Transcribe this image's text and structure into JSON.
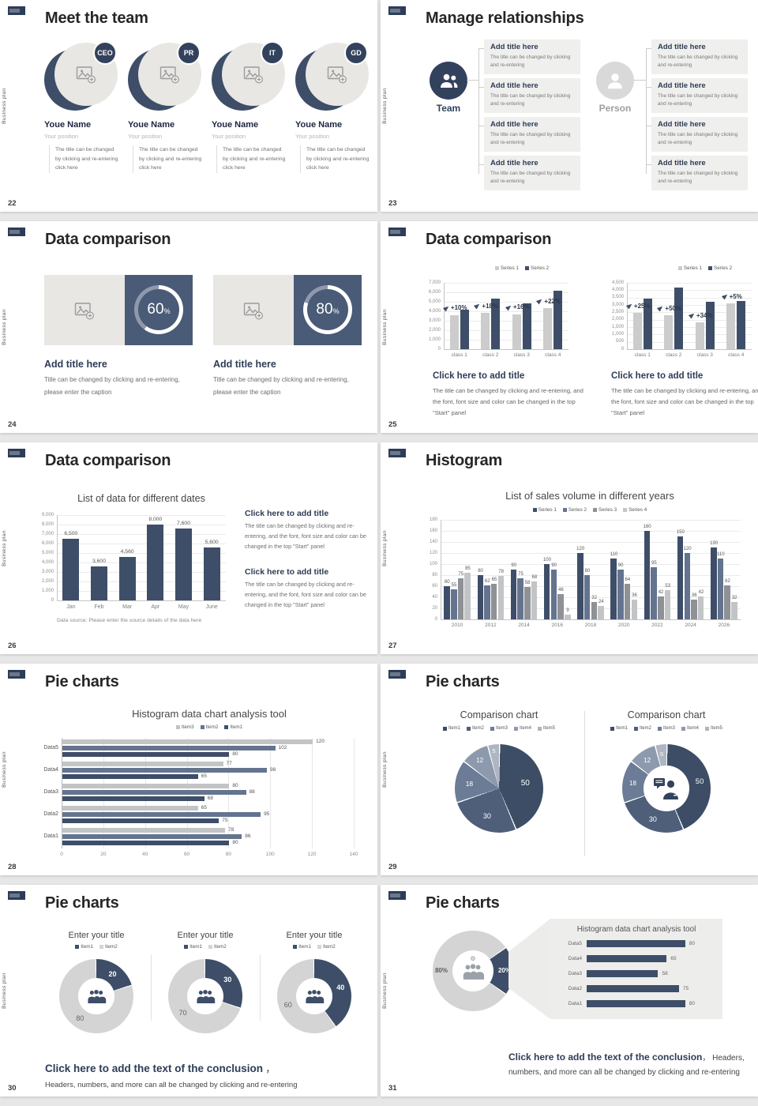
{
  "sidebar_text": "Business plan",
  "colors": {
    "navy": "#3e4e68",
    "heading": "#2e3c55",
    "badge": "#33425c",
    "blue_gray": "#64748f",
    "mid_gray": "#8e9196",
    "light_gray": "#c2c4c6",
    "bar_light": "#cccccc",
    "card_navy": "#4a5b77",
    "donut_gray": "#d4d4d4",
    "panel": "#ededeb",
    "placeholder": "#e9e7e4",
    "pie": [
      "#3d4d66",
      "#4f5f7a",
      "#6c7c96",
      "#8d9aae",
      "#aeb6c2"
    ]
  },
  "slides": [
    {
      "number": "22",
      "title": "Meet the team",
      "type": "team",
      "members": [
        {
          "role": "CEO"
        },
        {
          "role": "PR"
        },
        {
          "role": "IT"
        },
        {
          "role": "GD"
        }
      ],
      "name": "Youe Name",
      "position": "Your position",
      "caption": "The title can be changed by clicking and re-entering click here"
    },
    {
      "number": "23",
      "title": "Manage relationships",
      "type": "relations",
      "groups": [
        {
          "label": "Team",
          "icon": "team-icon"
        },
        {
          "label": "Person",
          "icon": "person-icon"
        }
      ],
      "box_title": "Add title here",
      "box_body": "The title can be changed by clicking and re-entering"
    },
    {
      "number": "24",
      "title": "Data comparison",
      "type": "percent_cards",
      "cards": [
        {
          "value": 60
        },
        {
          "value": 80
        }
      ],
      "percent_sign": "%",
      "card_title": "Add title here",
      "card_caption": "Title can be changed by clicking and re-entering, please enter the caption"
    },
    {
      "number": "25",
      "title": "Data comparison",
      "type": "dual_bar",
      "legend": [
        "Series 1",
        "Series 2"
      ],
      "caption_title": "Click here to add title",
      "caption_body": "The title can be changed by clicking and re-entering, and the font, font size and color can be changed in the top \"Start\" panel",
      "charts": [
        {
          "ymax": 7000,
          "yticks": [
            "7,000",
            "6,000",
            "5,000",
            "4,000",
            "3,000",
            "2,000",
            "1,000",
            "0"
          ],
          "categories": [
            "class 1",
            "class 2",
            "class 3",
            "class 4"
          ],
          "series1": [
            3600,
            3800,
            3700,
            4300
          ],
          "series2": [
            4200,
            5300,
            4800,
            6200
          ],
          "annotations": [
            "+10%",
            "+18%",
            "+16%",
            "+22%"
          ]
        },
        {
          "ymax": 4500,
          "yticks": [
            "4,500",
            "4,000",
            "3,500",
            "3,000",
            "2,500",
            "2,000",
            "1,500",
            "1,000",
            "500",
            "0"
          ],
          "categories": [
            "class 1",
            "class 2",
            "class 3",
            "class 4"
          ],
          "series1": [
            2450,
            2300,
            1800,
            3100
          ],
          "series2": [
            3450,
            4200,
            3200,
            3250
          ],
          "annotations": [
            "+25%",
            "+50%",
            "+34%",
            "+5%"
          ]
        }
      ]
    },
    {
      "number": "26",
      "title": "Data comparison",
      "type": "month_bar",
      "chart": {
        "title": "List of data for different dates",
        "ymax": 9000,
        "yticks": [
          "9,000",
          "8,000",
          "7,000",
          "6,000",
          "5,000",
          "4,000",
          "3,000",
          "2,000",
          "1,000",
          "0"
        ],
        "categories": [
          "Jan",
          "Feb",
          "Mar",
          "Apr",
          "May",
          "June"
        ],
        "values": [
          6500,
          3600,
          4560,
          8000,
          7600,
          5600
        ],
        "labels": [
          "6,500",
          "3,600",
          "4,560",
          "8,000",
          "7,600",
          "5,600"
        ],
        "footnote": "Data source: Please enter the source details of the data here"
      },
      "caption_title": "Click here to add title",
      "caption_body": "The title can be changed by clicking and re-entering, and the font, font size and color can be changed in the top \"Start\" panel"
    },
    {
      "number": "27",
      "title": "Histogram",
      "type": "grouped_bar",
      "chart": {
        "title": "List of sales volume in different years",
        "legend": [
          "Series 1",
          "Series 2",
          "Series 3",
          "Series 4"
        ],
        "years": [
          2010,
          2012,
          2014,
          2016,
          2018,
          2020,
          2022,
          2024,
          2026
        ],
        "ymax": 180,
        "yticks": [
          "180",
          "160",
          "140",
          "120",
          "100",
          "80",
          "60",
          "40",
          "20",
          "0"
        ],
        "series": [
          [
            60,
            80,
            90,
            100,
            120,
            110,
            160,
            150,
            130
          ],
          [
            55,
            62,
            75,
            90,
            80,
            90,
            95,
            120,
            110
          ],
          [
            75,
            65,
            58,
            46,
            32,
            64,
            42,
            36,
            62
          ],
          [
            85,
            78,
            68,
            9,
            24,
            36,
            53,
            42,
            32
          ]
        ]
      }
    },
    {
      "number": "28",
      "title": "Pie charts",
      "type": "hbar",
      "chart": {
        "title": "Histogram data chart analysis tool",
        "legend": [
          "Item3",
          "Item2",
          "Item1"
        ],
        "xmax": 140,
        "xticks": [
          "0",
          "20",
          "40",
          "60",
          "80",
          "100",
          "120",
          "140"
        ],
        "groups": [
          {
            "label": "Data5",
            "values": [
              120,
              102,
              80
            ]
          },
          {
            "label": "Data4",
            "values": [
              77,
              98,
              65
            ]
          },
          {
            "label": "Data3",
            "values": [
              80,
              88,
              68
            ]
          },
          {
            "label": "Data2",
            "values": [
              65,
              95,
              75
            ]
          },
          {
            "label": "Data1",
            "values": [
              78,
              86,
              80
            ]
          }
        ]
      }
    },
    {
      "number": "29",
      "title": "Pie charts",
      "type": "pies",
      "legend": [
        "Item1",
        "Item2",
        "Item3",
        "Item4",
        "Item5"
      ],
      "values": [
        50,
        30,
        18,
        12,
        5
      ],
      "charts": [
        {
          "title": "Comparison chart",
          "style": "pie"
        },
        {
          "title": "Comparison chart",
          "style": "donut"
        }
      ]
    },
    {
      "number": "30",
      "title": "Pie charts",
      "type": "donut_trio",
      "donut_title": "Enter your title",
      "legend": [
        "Item1",
        "Item2"
      ],
      "donuts": [
        [
          20,
          80
        ],
        [
          30,
          70
        ],
        [
          40,
          60
        ]
      ],
      "conclusion_bold": "Click here to add the text of the conclusion",
      "conclusion_comma": " ，",
      "conclusion_body": "Headers, numbers, and more can all be changed by clicking and re-entering"
    },
    {
      "number": "31",
      "title": "Pie charts",
      "type": "funnel",
      "donut": {
        "dark": 20,
        "light": 80,
        "dark_label": "20%",
        "light_label": "80%"
      },
      "panel": {
        "title": "Histogram data chart analysis tool",
        "groups": [
          {
            "label": "Data5",
            "value": 80
          },
          {
            "label": "Data4",
            "value": 65
          },
          {
            "label": "Data3",
            "value": 58
          },
          {
            "label": "Data2",
            "value": 75
          },
          {
            "label": "Data1",
            "value": 80
          }
        ]
      },
      "conclusion_bold": "Click here to add the text of the conclusion",
      "conclusion_rest": "， Headers,",
      "conclusion_line2": "numbers, and more can all be changed by clicking and re-entering"
    }
  ]
}
